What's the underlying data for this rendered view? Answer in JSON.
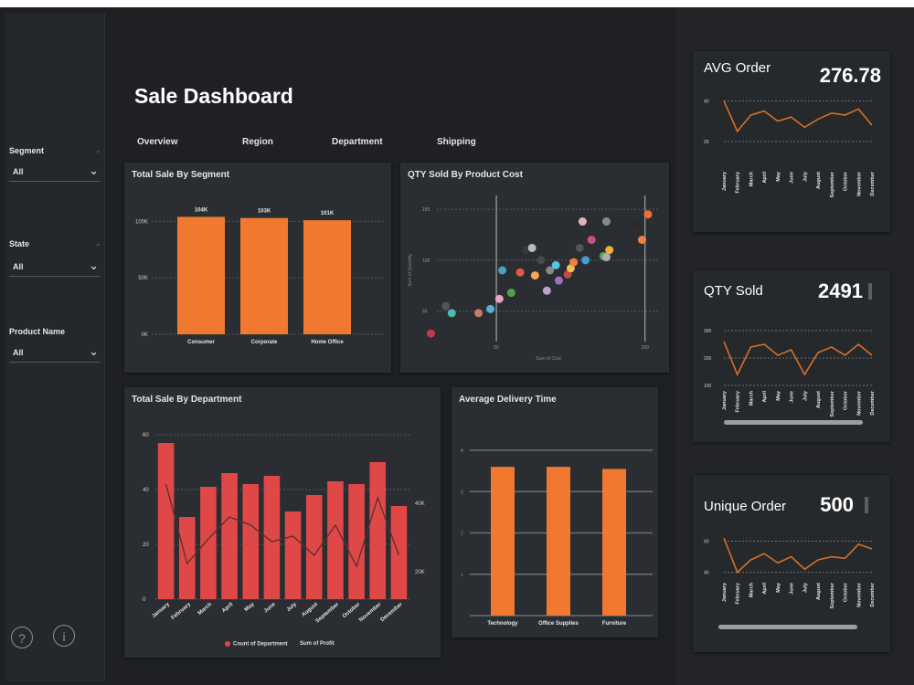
{
  "page": {
    "title": "Sale Dashboard"
  },
  "nav": {
    "tabs": [
      "Overview",
      "Region",
      "Department",
      "Shipping"
    ]
  },
  "filters": [
    {
      "label": "Segment",
      "value": "All"
    },
    {
      "label": "State",
      "value": "All"
    },
    {
      "label": "Product Name",
      "value": "All"
    }
  ],
  "sidebar_icons": {
    "help": "?",
    "info": "i"
  },
  "colors": {
    "background": "#1e2024",
    "card": "#2a2d31",
    "orange": "#f0792f",
    "red": "#e04848"
  },
  "charts": {
    "segment": {
      "title": "Total Sale By Segment",
      "chart_data": {
        "type": "bar",
        "categories": [
          "Consumer",
          "Corporate",
          "Home Office"
        ],
        "values": [
          104,
          103,
          101
        ],
        "data_labels": [
          "104K",
          "103K",
          "101K"
        ],
        "y_ticks": [
          "0K",
          "50K",
          "100K"
        ],
        "ylim": [
          0,
          110
        ]
      }
    },
    "scatter": {
      "title": "QTY Sold By Product Cost",
      "chart_data": {
        "type": "scatter",
        "xlabel": "Sum of Cost",
        "ylabel": "Sum of Quantity",
        "x_ticks": [
          "50",
          "100"
        ],
        "y_ticks": [
          "50",
          "100",
          "150"
        ],
        "xlim": [
          30,
          105
        ],
        "ylim": [
          20,
          160
        ],
        "points": [
          {
            "x": 28,
            "y": 28,
            "color": "#c0394a"
          },
          {
            "x": 35,
            "y": 48,
            "color": "#4fb8b0"
          },
          {
            "x": 33,
            "y": 55,
            "color": "#555555"
          },
          {
            "x": 44,
            "y": 48,
            "color": "#c77b6a"
          },
          {
            "x": 48,
            "y": 52,
            "color": "#5ab0d6"
          },
          {
            "x": 52,
            "y": 90,
            "color": "#49a0c9"
          },
          {
            "x": 51,
            "y": 62,
            "color": "#e8a6c0"
          },
          {
            "x": 55,
            "y": 68,
            "color": "#4fa24a"
          },
          {
            "x": 58,
            "y": 88,
            "color": "#e05a46"
          },
          {
            "x": 60,
            "y": 110,
            "color": "#383838"
          },
          {
            "x": 62,
            "y": 112,
            "color": "#bbbbbb"
          },
          {
            "x": 63,
            "y": 85,
            "color": "#f4a65a"
          },
          {
            "x": 65,
            "y": 100,
            "color": "#4a4a4a"
          },
          {
            "x": 67,
            "y": 70,
            "color": "#c0a0d0"
          },
          {
            "x": 68,
            "y": 90,
            "color": "#888888"
          },
          {
            "x": 70,
            "y": 95,
            "color": "#50c8e0"
          },
          {
            "x": 71,
            "y": 80,
            "color": "#a070c0"
          },
          {
            "x": 74,
            "y": 86,
            "color": "#c04848"
          },
          {
            "x": 75,
            "y": 92,
            "color": "#f0c050"
          },
          {
            "x": 76,
            "y": 98,
            "color": "#f08040"
          },
          {
            "x": 78,
            "y": 112,
            "color": "#555555"
          },
          {
            "x": 79,
            "y": 138,
            "color": "#e8b0b8"
          },
          {
            "x": 80,
            "y": 100,
            "color": "#4a9ad0"
          },
          {
            "x": 86,
            "y": 104,
            "color": "#5aa050"
          },
          {
            "x": 88,
            "y": 110,
            "color": "#f2b030"
          },
          {
            "x": 87,
            "y": 103,
            "color": "#b0b0b0"
          },
          {
            "x": 82,
            "y": 120,
            "color": "#d04c88"
          },
          {
            "x": 87,
            "y": 138,
            "color": "#8a8a8a"
          },
          {
            "x": 97,
            "y": 135,
            "color": "#2a2a2a"
          },
          {
            "x": 99,
            "y": 120,
            "color": "#f08040"
          },
          {
            "x": 101,
            "y": 145,
            "color": "#f07030"
          }
        ]
      }
    },
    "department": {
      "title": "Total Sale By Department",
      "chart_data": {
        "type": "bar",
        "categories": [
          "January",
          "February",
          "March",
          "April",
          "May",
          "June",
          "July",
          "August",
          "September",
          "October",
          "November",
          "December"
        ],
        "series": [
          {
            "name": "Count of Department",
            "values": [
              57,
              30,
              41,
              46,
              42,
              45,
              32,
              38,
              43,
              42,
              50,
              34
            ]
          },
          {
            "name": "Sum of Profit",
            "values": [
              42,
              13,
              22,
              30,
              27,
              21,
              23,
              16,
              27,
              12,
              37,
              16
            ]
          }
        ],
        "y_ticks": [
          "0",
          "20",
          "40",
          "60"
        ],
        "y2_ticks": [
          "20K",
          "40K"
        ],
        "ylim": [
          0,
          60
        ]
      }
    },
    "delivery": {
      "title": "Average Delivery Time",
      "chart_data": {
        "type": "bar",
        "categories": [
          "Technology",
          "Office Supplies",
          "Furniture"
        ],
        "values": [
          3.6,
          3.6,
          3.55
        ],
        "y_ticks": [
          "1",
          "2",
          "3",
          "4"
        ],
        "ylim": [
          0,
          4.2
        ]
      }
    }
  },
  "kpis": {
    "avg_order": {
      "label": "AVG Order",
      "value": "276.78",
      "chart_data": {
        "type": "line",
        "months": [
          "January",
          "February",
          "March",
          "April",
          "May",
          "June",
          "July",
          "August",
          "September",
          "October",
          "November",
          "December"
        ],
        "values": [
          40,
          25,
          33,
          35,
          30,
          32,
          27,
          31,
          34,
          33,
          36,
          28
        ],
        "y_ticks": [
          "20",
          "40"
        ]
      }
    },
    "qty_sold": {
      "label": "QTY Sold",
      "value": "2491",
      "chart_data": {
        "type": "line",
        "months": [
          "January",
          "February",
          "March",
          "April",
          "May",
          "June",
          "July",
          "August",
          "September",
          "October",
          "November",
          "December"
        ],
        "values": [
          260,
          140,
          240,
          250,
          210,
          230,
          140,
          220,
          240,
          210,
          250,
          210
        ],
        "y_ticks": [
          "100",
          "200",
          "300"
        ]
      }
    },
    "unique_order": {
      "label": "Unique Order",
      "value": "500",
      "chart_data": {
        "type": "line",
        "months": [
          "January",
          "February",
          "March",
          "April",
          "May",
          "June",
          "July",
          "August",
          "September",
          "October",
          "November",
          "December"
        ],
        "values": [
          62,
          40,
          48,
          52,
          46,
          50,
          42,
          48,
          50,
          49,
          58,
          55
        ],
        "y_ticks": [
          "40",
          "60"
        ]
      }
    }
  }
}
